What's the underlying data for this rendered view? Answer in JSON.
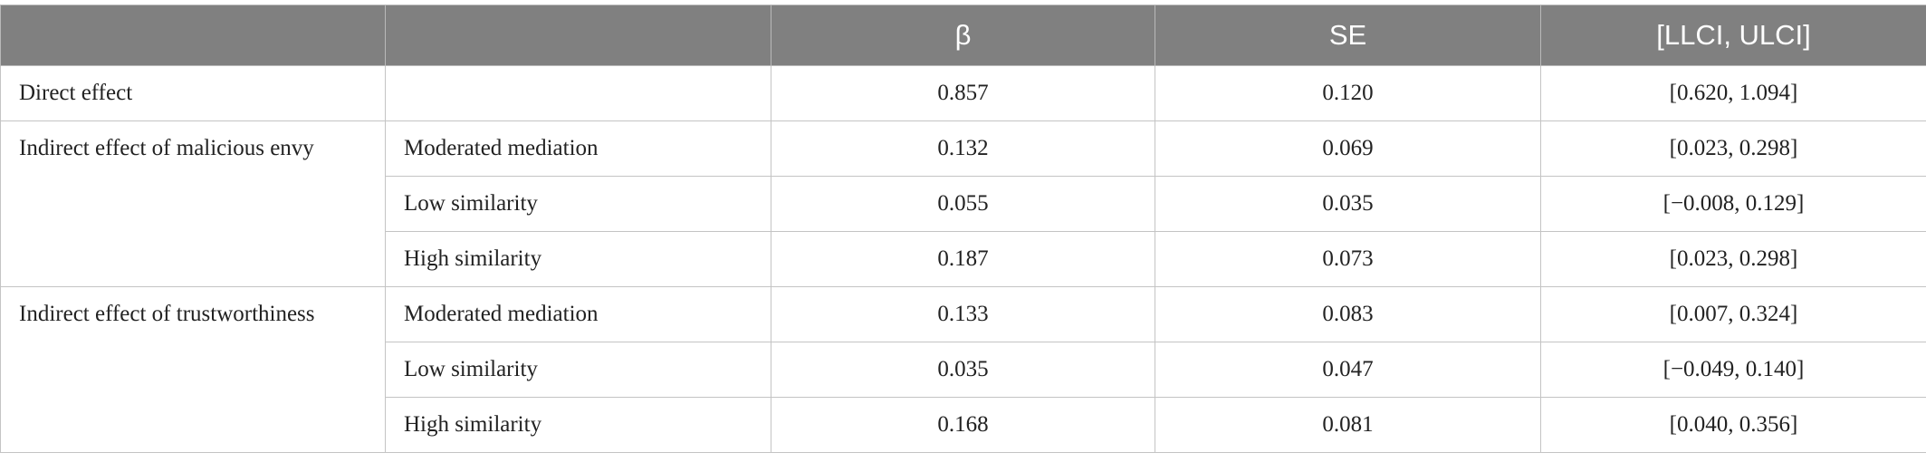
{
  "table": {
    "header": [
      "β",
      "SE",
      "[LLCI, ULCI]"
    ],
    "rows": [
      {
        "effect": "Direct effect",
        "values": [
          "0.857",
          "0.120",
          "[0.620, 1.094]"
        ]
      },
      {
        "effect": "Indirect effect of malicious envy",
        "conditions": [
          {
            "condition": "Moderated mediation",
            "values": [
              "0.132",
              "0.069",
              "[0.023, 0.298]"
            ]
          },
          {
            "condition": "Low similarity",
            "values": [
              "0.055",
              "0.035",
              "[−0.008, 0.129]"
            ]
          },
          {
            "condition": "High similarity",
            "values": [
              "0.187",
              "0.073",
              "[0.023, 0.298]"
            ]
          }
        ]
      },
      {
        "effect": "Indirect effect of trustworthiness",
        "conditions": [
          {
            "condition": "Moderated mediation",
            "values": [
              "0.133",
              "0.083",
              "[0.007, 0.324]"
            ]
          },
          {
            "condition": "Low similarity",
            "values": [
              "0.035",
              "0.047",
              "[−0.049, 0.140]"
            ]
          },
          {
            "condition": "High similarity",
            "values": [
              "0.168",
              "0.081",
              "[0.040, 0.356]"
            ]
          }
        ]
      }
    ]
  }
}
